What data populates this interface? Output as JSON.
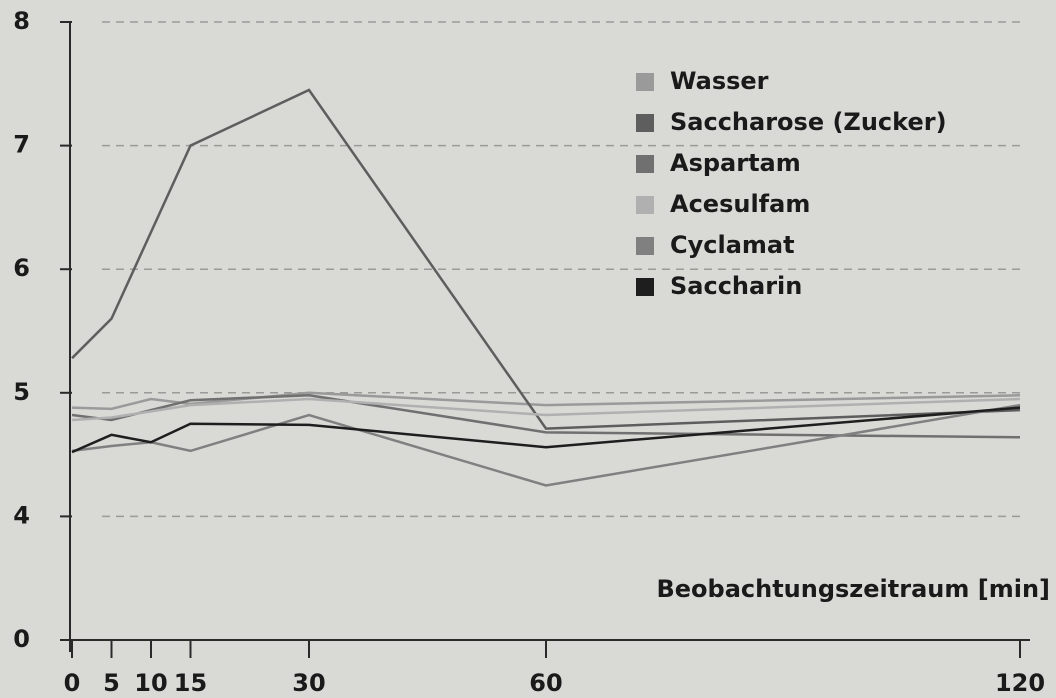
{
  "chart_data": {
    "type": "line",
    "xlabel": "Beobachtungszeitraum [min]",
    "x": [
      0,
      5,
      10,
      15,
      30,
      60,
      120
    ],
    "series": [
      {
        "name": "Wasser",
        "color": "#9a9a9a",
        "values": [
          4.88,
          4.87,
          4.95,
          4.91,
          5.0,
          4.9,
          4.98
        ]
      },
      {
        "name": "Saccharose (Zucker)",
        "color": "#5e5e5e",
        "values": [
          5.28,
          5.6,
          6.3,
          7.0,
          7.45,
          4.71,
          4.86
        ]
      },
      {
        "name": "Aspartam",
        "color": "#707070",
        "values": [
          4.82,
          4.78,
          4.86,
          4.94,
          4.98,
          4.68,
          4.64
        ]
      },
      {
        "name": "Acesulfam",
        "color": "#b0b0b0",
        "values": [
          4.78,
          4.8,
          4.85,
          4.9,
          4.95,
          4.82,
          4.95
        ]
      },
      {
        "name": "Cyclamat",
        "color": "#808080",
        "values": [
          4.53,
          4.57,
          4.6,
          4.53,
          4.82,
          4.25,
          4.9
        ]
      },
      {
        "name": "Saccharin",
        "color": "#1e1e1e",
        "values": [
          4.52,
          4.66,
          4.6,
          4.75,
          4.74,
          4.56,
          4.88
        ]
      }
    ],
    "xlim": [
      0,
      120
    ],
    "xticks": [
      0,
      5,
      10,
      15,
      30,
      60,
      120
    ],
    "ylim": [
      0,
      8
    ],
    "ybreak": [
      0,
      3
    ],
    "yticks": [
      0,
      4,
      5,
      6,
      7,
      8
    ],
    "grid": true
  }
}
